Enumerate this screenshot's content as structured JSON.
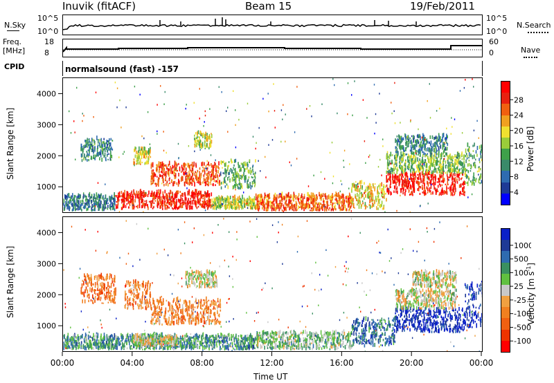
{
  "header": {
    "station": "Inuvik (fitACF)",
    "beam": "Beam 15",
    "date": "19/Feb/2011"
  },
  "strip_labels": {
    "nsky": "N.Sky",
    "nsearch": "N.Search",
    "freq": "Freq.",
    "freq_unit": "[MHz]",
    "nave": "Nave",
    "cpid": "CPID",
    "cpid_text": "normalsound (fast) -157",
    "count_top": "10^5",
    "count_bottom": "10^0",
    "freq_top": "18",
    "freq_bottom": "8",
    "nave_top": "60",
    "nave_bottom": "0"
  },
  "chart_data": [
    {
      "type": "heatmap",
      "name": "power",
      "xlabel": "",
      "ylabel": "Slant Range [km]",
      "xlim": [
        0,
        24
      ],
      "ylim": [
        180,
        4500
      ],
      "x_ticks": [
        "00:00",
        "04:00",
        "08:00",
        "12:00",
        "16:00",
        "20:00",
        "00:00"
      ],
      "y_ticks": [
        "1000",
        "2000",
        "3000",
        "4000"
      ],
      "colorbar": {
        "label": "Power [dB]",
        "ticks": [
          "28",
          "24",
          "20",
          "16",
          "12",
          "8",
          "4"
        ],
        "colors": [
          "#0000ff",
          "#1e3a96",
          "#2e6bb0",
          "#3a8a6a",
          "#3ea04a",
          "#9acc3a",
          "#f0e030",
          "#f0a020",
          "#f06010",
          "#e82010",
          "#ff0000"
        ]
      },
      "regions": [
        {
          "t0": 0.0,
          "t1": 3.0,
          "r0": 200,
          "r1": 700,
          "level": 0.25
        },
        {
          "t0": 3.0,
          "t1": 8.5,
          "r0": 250,
          "r1": 800,
          "level": 0.92
        },
        {
          "t0": 8.5,
          "t1": 11.0,
          "r0": 250,
          "r1": 600,
          "level": 0.55
        },
        {
          "t0": 1.0,
          "t1": 2.8,
          "r0": 1800,
          "r1": 2500,
          "level": 0.3
        },
        {
          "t0": 4.0,
          "t1": 5.0,
          "r0": 1700,
          "r1": 2200,
          "level": 0.6
        },
        {
          "t0": 5.0,
          "t1": 9.0,
          "r0": 1000,
          "r1": 1700,
          "level": 0.85
        },
        {
          "t0": 7.5,
          "t1": 8.5,
          "r0": 2200,
          "r1": 2700,
          "level": 0.55
        },
        {
          "t0": 9.0,
          "t1": 11.0,
          "r0": 900,
          "r1": 1800,
          "level": 0.4
        },
        {
          "t0": 11.0,
          "t1": 16.5,
          "r0": 200,
          "r1": 700,
          "level": 0.8
        },
        {
          "t0": 16.5,
          "t1": 18.5,
          "r0": 250,
          "r1": 1100,
          "level": 0.6
        },
        {
          "t0": 18.5,
          "t1": 23.0,
          "r0": 700,
          "r1": 1400,
          "level": 0.95
        },
        {
          "t0": 18.5,
          "t1": 23.0,
          "r0": 1400,
          "r1": 2000,
          "level": 0.45
        },
        {
          "t0": 23.0,
          "t1": 24.0,
          "r0": 1000,
          "r1": 2300,
          "level": 0.4
        },
        {
          "t0": 19.0,
          "t1": 22.0,
          "r0": 2000,
          "r1": 2600,
          "level": 0.3
        }
      ]
    },
    {
      "type": "heatmap",
      "name": "velocity",
      "xlabel": "Time UT",
      "ylabel": "Slant Range [km]",
      "xlim": [
        0,
        24
      ],
      "ylim": [
        180,
        4500
      ],
      "x_ticks": [
        "00:00",
        "04:00",
        "08:00",
        "12:00",
        "16:00",
        "20:00",
        "00:00"
      ],
      "y_ticks": [
        "1000",
        "2000",
        "3000",
        "4000"
      ],
      "colorbar": {
        "label": "Velocity [m s^-1]",
        "ticks": [
          "1000",
          "500",
          "100",
          "25",
          "-25",
          "-100",
          "-500",
          "-1000"
        ],
        "colors": [
          "#ff0000",
          "#ee3300",
          "#f06010",
          "#f08020",
          "#f0a040",
          "#c8c8c8",
          "#60c040",
          "#3a9060",
          "#2e6bb0",
          "#1e3a96",
          "#0a20c8"
        ]
      },
      "regions": [
        {
          "t0": 0.0,
          "t1": 11.0,
          "r0": 200,
          "r1": 650,
          "level": 0.7
        },
        {
          "t0": 4.0,
          "t1": 6.5,
          "r0": 300,
          "r1": 650,
          "level": 0.5
        },
        {
          "t0": 1.0,
          "t1": 3.0,
          "r0": 1700,
          "r1": 2600,
          "level": 0.25
        },
        {
          "t0": 3.5,
          "t1": 5.0,
          "r0": 1500,
          "r1": 2400,
          "level": 0.3
        },
        {
          "t0": 5.0,
          "t1": 9.0,
          "r0": 1000,
          "r1": 1800,
          "level": 0.3
        },
        {
          "t0": 7.0,
          "t1": 8.8,
          "r0": 2200,
          "r1": 2700,
          "level": 0.5
        },
        {
          "t0": 11.0,
          "t1": 16.5,
          "r0": 200,
          "r1": 750,
          "level": 0.6
        },
        {
          "t0": 16.5,
          "t1": 19.0,
          "r0": 300,
          "r1": 1200,
          "level": 0.8
        },
        {
          "t0": 19.0,
          "t1": 23.0,
          "r0": 750,
          "r1": 1500,
          "level": 1.0
        },
        {
          "t0": 19.0,
          "t1": 22.5,
          "r0": 1500,
          "r1": 2100,
          "level": 0.5
        },
        {
          "t0": 23.0,
          "t1": 24.0,
          "r0": 900,
          "r1": 2300,
          "level": 0.95
        },
        {
          "t0": 20.0,
          "t1": 22.5,
          "r0": 2200,
          "r1": 2700,
          "level": 0.5
        }
      ]
    }
  ]
}
